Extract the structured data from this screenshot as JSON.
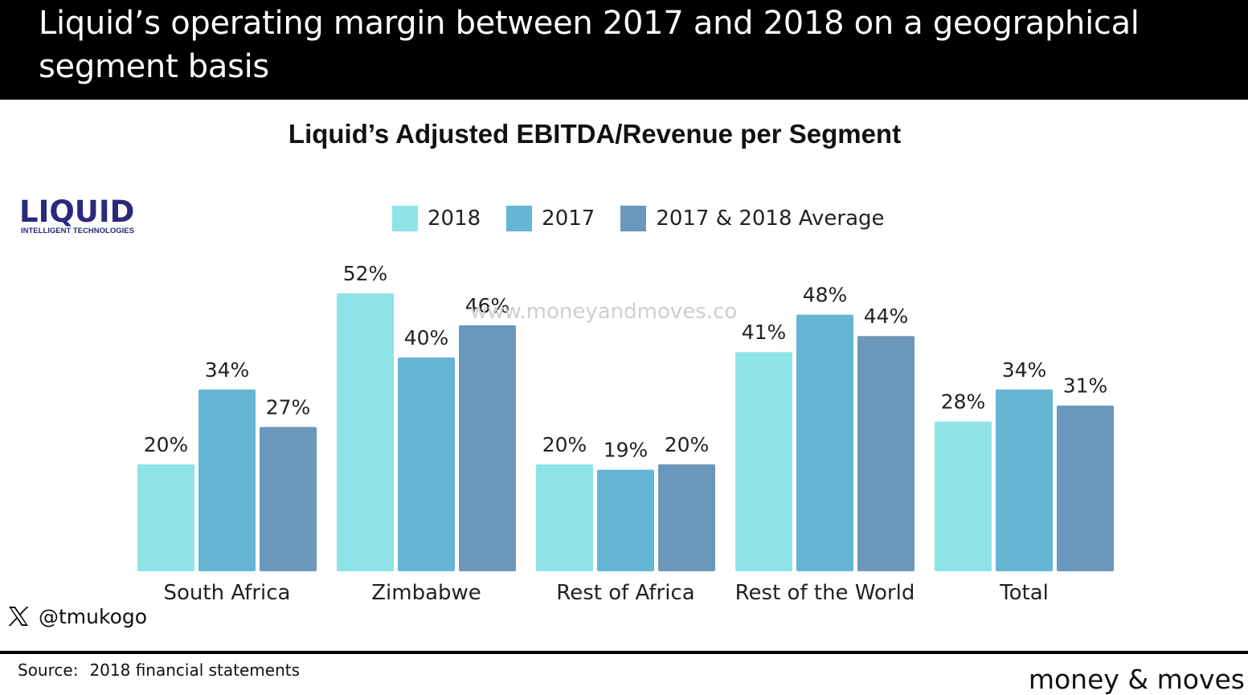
{
  "header": {
    "title": "Liquid’s operating margin between 2017 and 2018 on a geographical segment basis"
  },
  "logo": {
    "name": "LIQUID",
    "tagline": "INTELLIGENT TECHNOLOGIES"
  },
  "watermark": "www.moneyandmoves.co",
  "social": {
    "icon": "x-logo-icon",
    "handle": "@tmukogo"
  },
  "footer": {
    "source_label": "Source:",
    "source_text": "2018 financial statements",
    "brand": "money & moves"
  },
  "colors": {
    "s2018": "#8ee3e7",
    "s2017": "#65b5d4",
    "avg": "#6b97ba"
  },
  "chart_data": {
    "type": "bar",
    "title": "Liquid’s Adjusted EBITDA/Revenue per Segment",
    "categories": [
      "South Africa",
      "Zimbabwe",
      "Rest of Africa",
      "Rest of the World",
      "Total"
    ],
    "series": [
      {
        "name": "2018",
        "values": [
          20,
          52,
          20,
          41,
          28
        ],
        "labels": [
          "20%",
          "52%",
          "20%",
          "41%",
          "28%"
        ]
      },
      {
        "name": "2017",
        "values": [
          34,
          40,
          19,
          48,
          34
        ],
        "labels": [
          "34%",
          "40%",
          "19%",
          "48%",
          "34%"
        ]
      },
      {
        "name": "2017 & 2018 Average",
        "values": [
          27,
          46,
          20,
          44,
          31
        ],
        "labels": [
          "27%",
          "46%",
          "20%",
          "44%",
          "31%"
        ]
      }
    ],
    "ylim": [
      0,
      52
    ],
    "legend": "top-center",
    "grid": false
  }
}
